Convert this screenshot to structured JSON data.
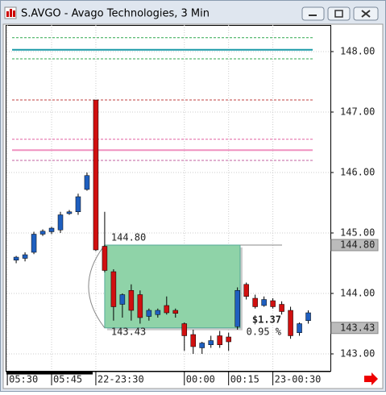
{
  "window": {
    "title": "S.AVGO - Avago Technologies, 3 Min"
  },
  "chart_data": {
    "type": "candlestick",
    "up_color": "#1f5fbf",
    "down_color": "#d01010",
    "open": [
      144.55,
      144.58,
      144.68,
      144.98,
      145.02,
      145.05,
      145.32,
      145.35,
      145.72,
      147.2,
      144.78,
      144.36,
      143.82,
      144.05,
      143.98,
      143.62,
      143.65,
      143.8,
      143.72,
      143.5,
      143.32,
      143.1,
      143.15,
      143.3,
      143.28,
      143.45,
      144.15,
      143.92,
      143.8,
      143.88,
      143.82,
      143.72,
      143.35,
      143.55
    ],
    "high": [
      144.62,
      144.68,
      145.02,
      145.06,
      145.1,
      145.35,
      145.38,
      145.65,
      146.0,
      147.2,
      145.35,
      144.4,
      144.0,
      144.15,
      144.05,
      143.75,
      143.75,
      143.95,
      143.75,
      143.52,
      143.4,
      143.2,
      143.3,
      143.38,
      143.35,
      144.1,
      144.18,
      143.98,
      143.95,
      143.92,
      143.87,
      143.78,
      143.52,
      143.72
    ],
    "low": [
      144.5,
      144.53,
      144.65,
      144.95,
      144.98,
      145.0,
      145.3,
      145.3,
      145.7,
      144.7,
      144.35,
      143.55,
      143.6,
      143.55,
      143.5,
      143.55,
      143.6,
      143.65,
      143.6,
      143.05,
      143.0,
      143.0,
      143.1,
      143.1,
      143.05,
      143.4,
      143.9,
      143.75,
      143.78,
      143.75,
      143.65,
      143.25,
      143.3,
      143.5
    ],
    "close": [
      144.6,
      144.64,
      144.98,
      145.03,
      145.08,
      145.3,
      145.35,
      145.6,
      145.95,
      144.72,
      144.38,
      143.78,
      143.98,
      143.72,
      143.6,
      143.72,
      143.72,
      143.68,
      143.67,
      143.3,
      143.12,
      143.18,
      143.22,
      143.15,
      143.2,
      144.05,
      143.95,
      143.78,
      143.9,
      143.78,
      143.7,
      143.3,
      143.5,
      143.68
    ],
    "xlim": [
      -1.1,
      35.5
    ],
    "xticks": [
      {
        "value": -1,
        "label": "05:30"
      },
      {
        "value": 4,
        "label": "05:45"
      },
      {
        "value": 9,
        "label": "22-23:30"
      },
      {
        "value": 19,
        "label": "00:00"
      },
      {
        "value": 24,
        "label": "00:15"
      },
      {
        "value": 29,
        "label": "23-00:30"
      }
    ],
    "ylim": [
      142.72,
      148.44
    ],
    "yticks": [
      {
        "value": 143,
        "label": "143.00"
      },
      {
        "value": 144,
        "label": "144.00"
      },
      {
        "value": 145,
        "label": "145.00"
      },
      {
        "value": 146,
        "label": "146.00"
      },
      {
        "value": 147,
        "label": "147.00"
      },
      {
        "value": 148,
        "label": "148.00"
      }
    ],
    "grid": true,
    "levels": [
      {
        "value": 148.23,
        "color": "#2fa84f",
        "dashed": true
      },
      {
        "value": 148.03,
        "color": "#1a9aa8",
        "dashed": false
      },
      {
        "value": 147.88,
        "color": "#2fa84f",
        "dashed": true
      },
      {
        "value": 147.2,
        "color": "#c04040",
        "dashed": true
      },
      {
        "value": 146.55,
        "color": "#e060a0",
        "dashed": true
      },
      {
        "value": 146.37,
        "color": "#f090c0",
        "dashed": false
      },
      {
        "value": 146.2,
        "color": "#c060a0",
        "dashed": true
      }
    ],
    "measure": {
      "high": 144.8,
      "low": 143.43,
      "start": 10,
      "end": 25.3,
      "high_label": "144.80",
      "low_label": "143.43",
      "change_label": "$1.37",
      "pct_label": "0.95 %"
    },
    "price_markers": [
      {
        "value": 144.8,
        "label": "144.80"
      },
      {
        "value": 143.43,
        "label": "143.43"
      }
    ]
  }
}
